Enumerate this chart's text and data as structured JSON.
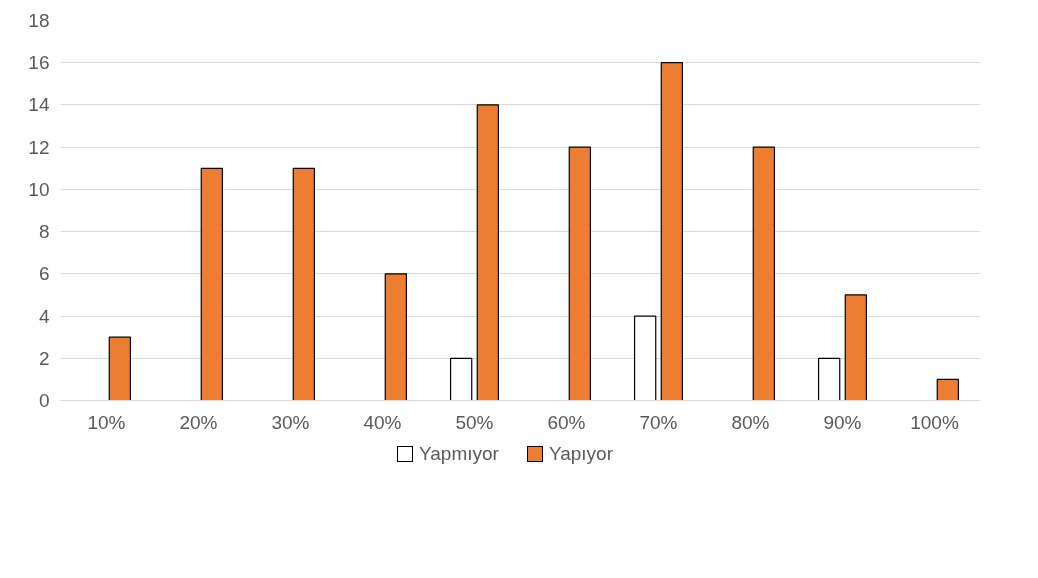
{
  "chart_data": {
    "type": "bar",
    "categories": [
      "10%",
      "20%",
      "30%",
      "40%",
      "50%",
      "60%",
      "70%",
      "80%",
      "90%",
      "100%"
    ],
    "series": [
      {
        "name": "Yapmıyor",
        "color": "#ffffff",
        "values": [
          0,
          0,
          0,
          0,
          2,
          0,
          4,
          0,
          2,
          0
        ]
      },
      {
        "name": "Yapıyor",
        "color": "#ed7d31",
        "values": [
          3,
          11,
          11,
          6,
          14,
          12,
          16,
          12,
          5,
          1
        ]
      }
    ],
    "ylim": [
      0,
      18
    ],
    "yticks": [
      0,
      2,
      4,
      6,
      8,
      10,
      12,
      14,
      16,
      18
    ],
    "grid": "y",
    "legend": "bottom"
  }
}
